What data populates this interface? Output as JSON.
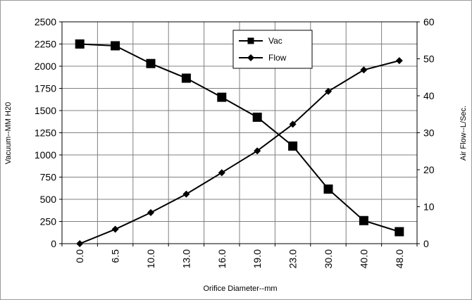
{
  "chart_data": {
    "type": "line",
    "title": "",
    "xlabel": "Orifice Diameter--mm",
    "ylabel": "Vacuum--MM H20",
    "y2label": "Air Flow--L/Sec.",
    "categories": [
      "0.0",
      "6.5",
      "10.0",
      "13.0",
      "16.0",
      "19.0",
      "23.0",
      "30.0",
      "40.0",
      "48.0"
    ],
    "ylim": [
      0,
      2500
    ],
    "y2lim": [
      0,
      60
    ],
    "yticks": [
      "0",
      "250",
      "500",
      "750",
      "1000",
      "1250",
      "1500",
      "1750",
      "2000",
      "2250",
      "2500"
    ],
    "y2ticks": [
      "0",
      "10",
      "20",
      "30",
      "40",
      "50",
      "60"
    ],
    "grid": true,
    "legend_position": "top-center",
    "series": [
      {
        "name": "Vac",
        "axis": "left",
        "marker": "square",
        "color": "#000000",
        "values": [
          2250,
          2230,
          2030,
          1865,
          1650,
          1425,
          1100,
          615,
          260,
          135
        ]
      },
      {
        "name": "Flow",
        "axis": "right",
        "marker": "diamond",
        "color": "#000000",
        "values": [
          0,
          3.9,
          8.4,
          13.4,
          19.2,
          25.1,
          32.3,
          41.2,
          47.0,
          49.5
        ]
      }
    ]
  }
}
